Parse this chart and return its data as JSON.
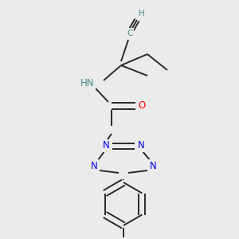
{
  "bg_color": "#ebebeb",
  "atom_colors": {
    "C": "#3a3a3a",
    "H": "#4a8a8a",
    "N": "#0000ee",
    "O": "#ee0000",
    "F": "#cc22cc"
  },
  "bond_color": "#2a2a2a",
  "bond_lw": 1.4,
  "fs": 8.5,
  "fs_small": 7.5
}
